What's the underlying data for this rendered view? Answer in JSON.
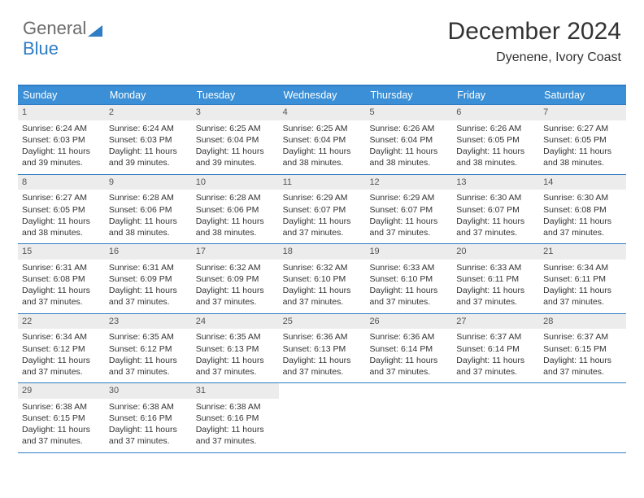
{
  "logo": {
    "text_gray": "General",
    "text_blue": "Blue"
  },
  "title": {
    "month": "December 2024",
    "location": "Dyenene, Ivory Coast"
  },
  "colors": {
    "header_bg": "#3a8fd6",
    "header_text": "#ffffff",
    "border": "#2f7dc4",
    "daynum_bg": "#ececec",
    "body_text": "#333333"
  },
  "calendar": {
    "day_labels": [
      "Sunday",
      "Monday",
      "Tuesday",
      "Wednesday",
      "Thursday",
      "Friday",
      "Saturday"
    ],
    "weeks": [
      [
        {
          "n": "1",
          "sr": "Sunrise: 6:24 AM",
          "ss": "Sunset: 6:03 PM",
          "d1": "Daylight: 11 hours",
          "d2": "and 39 minutes."
        },
        {
          "n": "2",
          "sr": "Sunrise: 6:24 AM",
          "ss": "Sunset: 6:03 PM",
          "d1": "Daylight: 11 hours",
          "d2": "and 39 minutes."
        },
        {
          "n": "3",
          "sr": "Sunrise: 6:25 AM",
          "ss": "Sunset: 6:04 PM",
          "d1": "Daylight: 11 hours",
          "d2": "and 39 minutes."
        },
        {
          "n": "4",
          "sr": "Sunrise: 6:25 AM",
          "ss": "Sunset: 6:04 PM",
          "d1": "Daylight: 11 hours",
          "d2": "and 38 minutes."
        },
        {
          "n": "5",
          "sr": "Sunrise: 6:26 AM",
          "ss": "Sunset: 6:04 PM",
          "d1": "Daylight: 11 hours",
          "d2": "and 38 minutes."
        },
        {
          "n": "6",
          "sr": "Sunrise: 6:26 AM",
          "ss": "Sunset: 6:05 PM",
          "d1": "Daylight: 11 hours",
          "d2": "and 38 minutes."
        },
        {
          "n": "7",
          "sr": "Sunrise: 6:27 AM",
          "ss": "Sunset: 6:05 PM",
          "d1": "Daylight: 11 hours",
          "d2": "and 38 minutes."
        }
      ],
      [
        {
          "n": "8",
          "sr": "Sunrise: 6:27 AM",
          "ss": "Sunset: 6:05 PM",
          "d1": "Daylight: 11 hours",
          "d2": "and 38 minutes."
        },
        {
          "n": "9",
          "sr": "Sunrise: 6:28 AM",
          "ss": "Sunset: 6:06 PM",
          "d1": "Daylight: 11 hours",
          "d2": "and 38 minutes."
        },
        {
          "n": "10",
          "sr": "Sunrise: 6:28 AM",
          "ss": "Sunset: 6:06 PM",
          "d1": "Daylight: 11 hours",
          "d2": "and 38 minutes."
        },
        {
          "n": "11",
          "sr": "Sunrise: 6:29 AM",
          "ss": "Sunset: 6:07 PM",
          "d1": "Daylight: 11 hours",
          "d2": "and 37 minutes."
        },
        {
          "n": "12",
          "sr": "Sunrise: 6:29 AM",
          "ss": "Sunset: 6:07 PM",
          "d1": "Daylight: 11 hours",
          "d2": "and 37 minutes."
        },
        {
          "n": "13",
          "sr": "Sunrise: 6:30 AM",
          "ss": "Sunset: 6:07 PM",
          "d1": "Daylight: 11 hours",
          "d2": "and 37 minutes."
        },
        {
          "n": "14",
          "sr": "Sunrise: 6:30 AM",
          "ss": "Sunset: 6:08 PM",
          "d1": "Daylight: 11 hours",
          "d2": "and 37 minutes."
        }
      ],
      [
        {
          "n": "15",
          "sr": "Sunrise: 6:31 AM",
          "ss": "Sunset: 6:08 PM",
          "d1": "Daylight: 11 hours",
          "d2": "and 37 minutes."
        },
        {
          "n": "16",
          "sr": "Sunrise: 6:31 AM",
          "ss": "Sunset: 6:09 PM",
          "d1": "Daylight: 11 hours",
          "d2": "and 37 minutes."
        },
        {
          "n": "17",
          "sr": "Sunrise: 6:32 AM",
          "ss": "Sunset: 6:09 PM",
          "d1": "Daylight: 11 hours",
          "d2": "and 37 minutes."
        },
        {
          "n": "18",
          "sr": "Sunrise: 6:32 AM",
          "ss": "Sunset: 6:10 PM",
          "d1": "Daylight: 11 hours",
          "d2": "and 37 minutes."
        },
        {
          "n": "19",
          "sr": "Sunrise: 6:33 AM",
          "ss": "Sunset: 6:10 PM",
          "d1": "Daylight: 11 hours",
          "d2": "and 37 minutes."
        },
        {
          "n": "20",
          "sr": "Sunrise: 6:33 AM",
          "ss": "Sunset: 6:11 PM",
          "d1": "Daylight: 11 hours",
          "d2": "and 37 minutes."
        },
        {
          "n": "21",
          "sr": "Sunrise: 6:34 AM",
          "ss": "Sunset: 6:11 PM",
          "d1": "Daylight: 11 hours",
          "d2": "and 37 minutes."
        }
      ],
      [
        {
          "n": "22",
          "sr": "Sunrise: 6:34 AM",
          "ss": "Sunset: 6:12 PM",
          "d1": "Daylight: 11 hours",
          "d2": "and 37 minutes."
        },
        {
          "n": "23",
          "sr": "Sunrise: 6:35 AM",
          "ss": "Sunset: 6:12 PM",
          "d1": "Daylight: 11 hours",
          "d2": "and 37 minutes."
        },
        {
          "n": "24",
          "sr": "Sunrise: 6:35 AM",
          "ss": "Sunset: 6:13 PM",
          "d1": "Daylight: 11 hours",
          "d2": "and 37 minutes."
        },
        {
          "n": "25",
          "sr": "Sunrise: 6:36 AM",
          "ss": "Sunset: 6:13 PM",
          "d1": "Daylight: 11 hours",
          "d2": "and 37 minutes."
        },
        {
          "n": "26",
          "sr": "Sunrise: 6:36 AM",
          "ss": "Sunset: 6:14 PM",
          "d1": "Daylight: 11 hours",
          "d2": "and 37 minutes."
        },
        {
          "n": "27",
          "sr": "Sunrise: 6:37 AM",
          "ss": "Sunset: 6:14 PM",
          "d1": "Daylight: 11 hours",
          "d2": "and 37 minutes."
        },
        {
          "n": "28",
          "sr": "Sunrise: 6:37 AM",
          "ss": "Sunset: 6:15 PM",
          "d1": "Daylight: 11 hours",
          "d2": "and 37 minutes."
        }
      ],
      [
        {
          "n": "29",
          "sr": "Sunrise: 6:38 AM",
          "ss": "Sunset: 6:15 PM",
          "d1": "Daylight: 11 hours",
          "d2": "and 37 minutes."
        },
        {
          "n": "30",
          "sr": "Sunrise: 6:38 AM",
          "ss": "Sunset: 6:16 PM",
          "d1": "Daylight: 11 hours",
          "d2": "and 37 minutes."
        },
        {
          "n": "31",
          "sr": "Sunrise: 6:38 AM",
          "ss": "Sunset: 6:16 PM",
          "d1": "Daylight: 11 hours",
          "d2": "and 37 minutes."
        },
        null,
        null,
        null,
        null
      ]
    ]
  }
}
